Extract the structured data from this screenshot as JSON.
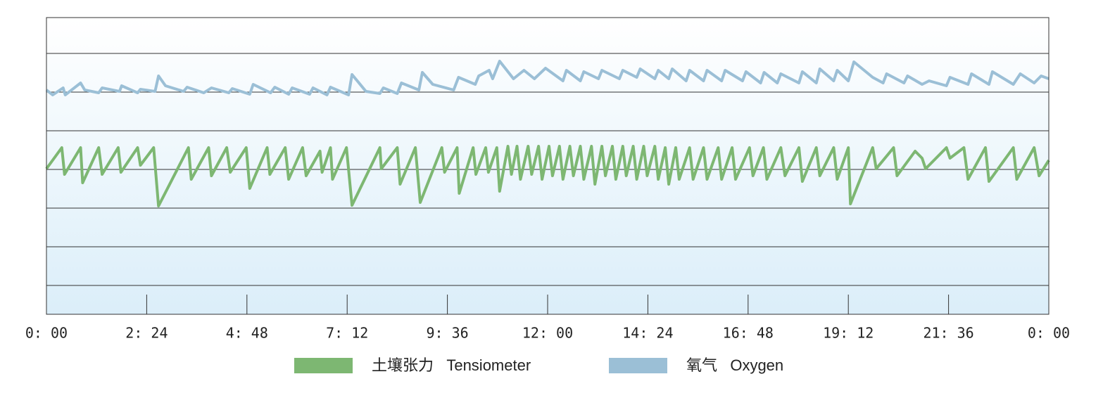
{
  "chart_data": {
    "type": "line",
    "xlim": [
      0,
      1440
    ],
    "xticks": [
      {
        "value": 0,
        "label": "0: 00"
      },
      {
        "value": 144,
        "label": "2: 24"
      },
      {
        "value": 288,
        "label": "4: 48"
      },
      {
        "value": 432,
        "label": "7: 12"
      },
      {
        "value": 576,
        "label": "9: 36"
      },
      {
        "value": 720,
        "label": "12: 00"
      },
      {
        "value": 864,
        "label": "14: 24"
      },
      {
        "value": 1008,
        "label": "16: 48"
      },
      {
        "value": 1152,
        "label": "19: 12"
      },
      {
        "value": 1296,
        "label": "21: 36"
      },
      {
        "value": 1440,
        "label": "0: 00"
      }
    ],
    "ylim": [
      0,
      422
    ],
    "yticks": [
      41,
      96,
      151,
      206,
      261,
      316,
      371
    ],
    "grid": true,
    "legend": "bottom",
    "series": [
      {
        "name": "土壤张力   Tensiometer",
        "color": "#7db772",
        "x": [
          0,
          22,
          26,
          49,
          52,
          75,
          80,
          103,
          107,
          131,
          135,
          154,
          161,
          204,
          208,
          233,
          237,
          259,
          264,
          287,
          292,
          317,
          321,
          343,
          348,
          368,
          373,
          393,
          396,
          408,
          411,
          431,
          439,
          479,
          481,
          504,
          508,
          530,
          537,
          568,
          572,
          590,
          593,
          613,
          617,
          631,
          635,
          647,
          651,
          663,
          668,
          676,
          681,
          692,
          697,
          707,
          712,
          722,
          727,
          737,
          742,
          752,
          757,
          767,
          772,
          783,
          788,
          798,
          803,
          813,
          818,
          828,
          833,
          843,
          848,
          858,
          863,
          874,
          879,
          889,
          894,
          904,
          909,
          924,
          929,
          944,
          949,
          965,
          970,
          985,
          990,
          1010,
          1015,
          1030,
          1035,
          1055,
          1061,
          1081,
          1086,
          1106,
          1111,
          1131,
          1136,
          1152,
          1155,
          1187,
          1192,
          1217,
          1222,
          1248,
          1258,
          1263,
          1293,
          1298,
          1318,
          1324,
          1349,
          1354,
          1389,
          1394,
          1419,
          1426,
          1440
        ],
        "values": [
          207,
          237,
          199,
          237,
          187,
          237,
          199,
          237,
          202,
          237,
          212,
          237,
          154,
          237,
          192,
          237,
          197,
          237,
          202,
          237,
          179,
          237,
          199,
          237,
          192,
          237,
          197,
          232,
          202,
          237,
          192,
          237,
          155,
          237,
          207,
          237,
          185,
          237,
          159,
          237,
          202,
          237,
          172,
          237,
          199,
          237,
          202,
          237,
          175,
          239,
          199,
          239,
          192,
          239,
          199,
          239,
          192,
          239,
          197,
          239,
          192,
          239,
          197,
          239,
          192,
          239,
          185,
          239,
          197,
          239,
          192,
          239,
          197,
          239,
          192,
          239,
          197,
          239,
          192,
          237,
          185,
          237,
          192,
          237,
          192,
          237,
          192,
          237,
          192,
          237,
          192,
          237,
          197,
          237,
          192,
          237,
          197,
          237,
          189,
          237,
          197,
          237,
          192,
          237,
          157,
          237,
          207,
          237,
          197,
          232,
          222,
          207,
          237,
          222,
          237,
          192,
          237,
          189,
          237,
          192,
          237,
          197,
          219
        ]
      },
      {
        "name": "氧气   Oxygen",
        "color": "#9bbfd6",
        "x": [
          0,
          9,
          24,
          27,
          49,
          55,
          75,
          80,
          105,
          108,
          131,
          135,
          156,
          161,
          171,
          197,
          202,
          226,
          237,
          262,
          267,
          292,
          297,
          322,
          328,
          348,
          353,
          378,
          383,
          403,
          408,
          434,
          439,
          459,
          479,
          484,
          504,
          510,
          535,
          540,
          555,
          585,
          592,
          616,
          621,
          636,
          641,
          651,
          671,
          686,
          701,
          717,
          742,
          747,
          767,
          772,
          793,
          798,
          823,
          828,
          848,
          853,
          874,
          879,
          894,
          899,
          919,
          924,
          944,
          949,
          970,
          975,
          1000,
          1005,
          1026,
          1031,
          1050,
          1055,
          1081,
          1086,
          1106,
          1111,
          1131,
          1136,
          1152,
          1160,
          1187,
          1202,
          1207,
          1232,
          1237,
          1258,
          1268,
          1293,
          1298,
          1324,
          1329,
          1354,
          1359,
          1389,
          1399,
          1419,
          1429,
          1440
        ],
        "values": [
          319,
          312,
          322,
          312,
          329,
          319,
          315,
          322,
          317,
          325,
          315,
          320,
          317,
          339,
          325,
          317,
          323,
          315,
          322,
          315,
          321,
          313,
          327,
          315,
          323,
          313,
          322,
          313,
          322,
          312,
          323,
          312,
          341,
          317,
          314,
          322,
          314,
          329,
          319,
          344,
          327,
          319,
          337,
          327,
          339,
          347,
          335,
          360,
          335,
          347,
          335,
          350,
          332,
          347,
          332,
          345,
          335,
          347,
          335,
          347,
          337,
          349,
          335,
          347,
          335,
          349,
          332,
          347,
          332,
          347,
          332,
          347,
          332,
          345,
          329,
          344,
          329,
          342,
          329,
          345,
          329,
          349,
          332,
          347,
          332,
          359,
          337,
          329,
          342,
          329,
          339,
          327,
          332,
          325,
          337,
          327,
          342,
          327,
          345,
          327,
          342,
          329,
          339,
          335
        ]
      }
    ]
  }
}
